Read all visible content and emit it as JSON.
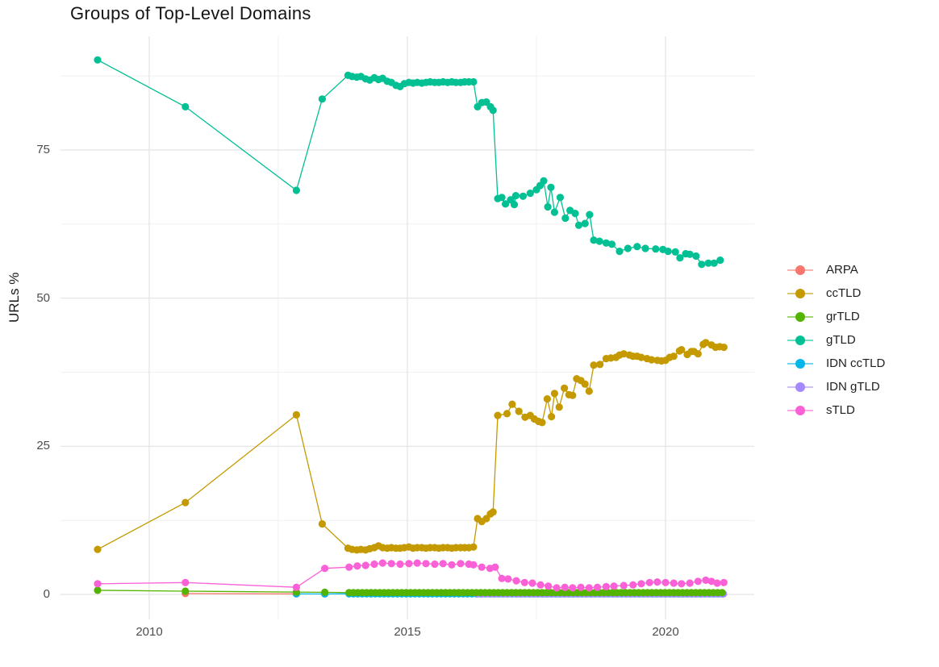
{
  "title": "Groups of Top-Level Domains",
  "y_axis_label": "URLs %",
  "legend": {
    "items": [
      {
        "label": "ARPA",
        "color": "#F8766D"
      },
      {
        "label": "ccTLD",
        "color": "#C49A00"
      },
      {
        "label": "grTLD",
        "color": "#53B400"
      },
      {
        "label": "gTLD",
        "color": "#00C094"
      },
      {
        "label": "IDN ccTLD",
        "color": "#00B6EB"
      },
      {
        "label": "IDN gTLD",
        "color": "#A58AFF"
      },
      {
        "label": "sTLD",
        "color": "#FB61D7"
      }
    ]
  },
  "chart_data": {
    "type": "line",
    "title": "Groups of Top-Level Domains",
    "xlabel": "",
    "ylabel": "URLs %",
    "xlim": [
      2008.3,
      2021.75
    ],
    "ylim": [
      -4.6,
      94.2
    ],
    "x_ticks": [
      2010,
      2015,
      2020
    ],
    "y_ticks": [
      0,
      25,
      50,
      75
    ],
    "x_minor": [
      2012.5,
      2017.5
    ],
    "y_minor": [
      12.5,
      37.5,
      62.5,
      87.5
    ],
    "grid": true,
    "legend_position": "right",
    "series": [
      {
        "name": "ARPA",
        "color": "#F8766D",
        "points": [
          [
            2010.7,
            0.15
          ],
          [
            2012.85,
            0.1
          ]
        ]
      },
      {
        "name": "ccTLD",
        "color": "#C49A00",
        "points": [
          [
            2009.0,
            7.6
          ],
          [
            2010.7,
            15.5
          ],
          [
            2012.85,
            30.3
          ],
          [
            2013.35,
            11.9
          ],
          [
            2013.85,
            7.8
          ],
          [
            2013.93,
            7.6
          ],
          [
            2014.02,
            7.5
          ],
          [
            2014.1,
            7.6
          ],
          [
            2014.19,
            7.5
          ],
          [
            2014.27,
            7.7
          ],
          [
            2014.36,
            7.9
          ],
          [
            2014.44,
            8.2
          ],
          [
            2014.52,
            7.9
          ],
          [
            2014.61,
            7.8
          ],
          [
            2014.69,
            7.9
          ],
          [
            2014.78,
            7.8
          ],
          [
            2014.86,
            7.8
          ],
          [
            2014.94,
            7.9
          ],
          [
            2015.03,
            8.0
          ],
          [
            2015.11,
            7.8
          ],
          [
            2015.19,
            7.9
          ],
          [
            2015.28,
            7.9
          ],
          [
            2015.36,
            7.8
          ],
          [
            2015.44,
            7.9
          ],
          [
            2015.53,
            7.9
          ],
          [
            2015.61,
            7.8
          ],
          [
            2015.69,
            7.9
          ],
          [
            2015.78,
            7.9
          ],
          [
            2015.86,
            7.8
          ],
          [
            2015.94,
            7.9
          ],
          [
            2016.03,
            7.9
          ],
          [
            2016.11,
            7.9
          ],
          [
            2016.19,
            7.9
          ],
          [
            2016.28,
            8.0
          ],
          [
            2016.36,
            12.8
          ],
          [
            2016.44,
            12.3
          ],
          [
            2016.53,
            12.8
          ],
          [
            2016.61,
            13.6
          ],
          [
            2016.66,
            13.9
          ],
          [
            2016.75,
            30.2
          ],
          [
            2016.93,
            30.5
          ],
          [
            2017.03,
            32.1
          ],
          [
            2017.16,
            30.9
          ],
          [
            2017.28,
            29.9
          ],
          [
            2017.38,
            30.2
          ],
          [
            2017.46,
            29.6
          ],
          [
            2017.54,
            29.2
          ],
          [
            2017.61,
            29.0
          ],
          [
            2017.71,
            33.0
          ],
          [
            2017.79,
            30.0
          ],
          [
            2017.85,
            33.9
          ],
          [
            2017.94,
            31.6
          ],
          [
            2018.04,
            34.8
          ],
          [
            2018.13,
            33.7
          ],
          [
            2018.2,
            33.6
          ],
          [
            2018.28,
            36.4
          ],
          [
            2018.36,
            36.1
          ],
          [
            2018.44,
            35.5
          ],
          [
            2018.52,
            34.3
          ],
          [
            2018.61,
            38.7
          ],
          [
            2018.73,
            38.8
          ],
          [
            2018.85,
            39.8
          ],
          [
            2018.94,
            39.9
          ],
          [
            2019.04,
            40.0
          ],
          [
            2019.11,
            40.4
          ],
          [
            2019.19,
            40.6
          ],
          [
            2019.3,
            40.4
          ],
          [
            2019.37,
            40.2
          ],
          [
            2019.45,
            40.2
          ],
          [
            2019.53,
            40.0
          ],
          [
            2019.64,
            39.8
          ],
          [
            2019.73,
            39.6
          ],
          [
            2019.84,
            39.5
          ],
          [
            2019.92,
            39.4
          ],
          [
            2020.0,
            39.5
          ],
          [
            2020.08,
            40.0
          ],
          [
            2020.16,
            40.2
          ],
          [
            2020.27,
            41.1
          ],
          [
            2020.31,
            41.3
          ],
          [
            2020.42,
            40.5
          ],
          [
            2020.5,
            41.0
          ],
          [
            2020.55,
            41.0
          ],
          [
            2020.63,
            40.6
          ],
          [
            2020.73,
            42.2
          ],
          [
            2020.78,
            42.5
          ],
          [
            2020.89,
            42.1
          ],
          [
            2020.97,
            41.7
          ],
          [
            2021.05,
            41.8
          ],
          [
            2021.13,
            41.7
          ]
        ]
      },
      {
        "name": "IDN ccTLD",
        "color": "#00B6EB",
        "points": [
          [
            2012.85,
            0.1
          ],
          [
            2013.4,
            0.08
          ],
          {
            "from": 2013.87,
            "to": 2021.13,
            "step": 0.085,
            "value": 0.1
          }
        ]
      },
      {
        "name": "IDN gTLD",
        "color": "#A58AFF",
        "points": [
          {
            "from": 2016.36,
            "to": 2021.13,
            "step": 0.085,
            "value": 0.08
          }
        ]
      },
      {
        "name": "grTLD",
        "color": "#53B400",
        "points": [
          [
            2009.0,
            0.7
          ],
          [
            2010.7,
            0.55
          ],
          [
            2012.85,
            0.4
          ],
          [
            2013.4,
            0.35
          ],
          {
            "from": 2013.87,
            "to": 2021.13,
            "step": 0.085,
            "value": 0.3
          }
        ]
      },
      {
        "name": "gTLD",
        "color": "#00C094",
        "points": [
          [
            2009.0,
            90.2
          ],
          [
            2010.7,
            82.3
          ],
          [
            2012.85,
            68.2
          ],
          [
            2013.35,
            83.6
          ],
          [
            2013.85,
            87.6
          ],
          [
            2013.93,
            87.4
          ],
          [
            2014.02,
            87.3
          ],
          [
            2014.1,
            87.4
          ],
          [
            2014.19,
            87.0
          ],
          [
            2014.27,
            86.8
          ],
          [
            2014.36,
            87.2
          ],
          [
            2014.44,
            86.9
          ],
          [
            2014.52,
            87.1
          ],
          [
            2014.61,
            86.6
          ],
          [
            2014.69,
            86.4
          ],
          [
            2014.78,
            85.9
          ],
          [
            2014.86,
            85.7
          ],
          [
            2014.94,
            86.2
          ],
          [
            2015.03,
            86.4
          ],
          [
            2015.11,
            86.3
          ],
          [
            2015.19,
            86.4
          ],
          [
            2015.28,
            86.3
          ],
          [
            2015.36,
            86.4
          ],
          [
            2015.44,
            86.5
          ],
          [
            2015.53,
            86.4
          ],
          [
            2015.61,
            86.4
          ],
          [
            2015.69,
            86.5
          ],
          [
            2015.78,
            86.4
          ],
          [
            2015.86,
            86.5
          ],
          [
            2015.94,
            86.4
          ],
          [
            2016.03,
            86.4
          ],
          [
            2016.11,
            86.5
          ],
          [
            2016.19,
            86.5
          ],
          [
            2016.28,
            86.5
          ],
          [
            2016.36,
            82.3
          ],
          [
            2016.44,
            83.0
          ],
          [
            2016.53,
            83.1
          ],
          [
            2016.61,
            82.3
          ],
          [
            2016.66,
            81.7
          ],
          [
            2016.75,
            66.8
          ],
          [
            2016.83,
            67.0
          ],
          [
            2016.9,
            65.9
          ],
          [
            2017.0,
            66.6
          ],
          [
            2017.07,
            65.8
          ],
          [
            2017.1,
            67.3
          ],
          [
            2017.24,
            67.2
          ],
          [
            2017.38,
            67.7
          ],
          [
            2017.5,
            68.3
          ],
          [
            2017.57,
            69.0
          ],
          [
            2017.64,
            69.8
          ],
          [
            2017.72,
            65.4
          ],
          [
            2017.78,
            68.7
          ],
          [
            2017.85,
            64.5
          ],
          [
            2017.96,
            67.0
          ],
          [
            2018.06,
            63.5
          ],
          [
            2018.15,
            64.8
          ],
          [
            2018.25,
            64.3
          ],
          [
            2018.32,
            62.3
          ],
          [
            2018.44,
            62.6
          ],
          [
            2018.53,
            64.1
          ],
          [
            2018.61,
            59.8
          ],
          [
            2018.72,
            59.6
          ],
          [
            2018.85,
            59.3
          ],
          [
            2018.96,
            59.1
          ],
          [
            2019.11,
            57.9
          ],
          [
            2019.27,
            58.4
          ],
          [
            2019.45,
            58.7
          ],
          [
            2019.61,
            58.4
          ],
          [
            2019.81,
            58.3
          ],
          [
            2019.95,
            58.2
          ],
          [
            2020.05,
            57.9
          ],
          [
            2020.19,
            57.8
          ],
          [
            2020.28,
            56.8
          ],
          [
            2020.39,
            57.5
          ],
          [
            2020.47,
            57.4
          ],
          [
            2020.59,
            57.1
          ],
          [
            2020.7,
            55.7
          ],
          [
            2020.83,
            55.9
          ],
          [
            2020.94,
            55.9
          ],
          [
            2021.06,
            56.4
          ]
        ]
      },
      {
        "name": "sTLD",
        "color": "#FB61D7",
        "points": [
          [
            2009.0,
            1.8
          ],
          [
            2010.7,
            2.0
          ],
          [
            2012.85,
            1.2
          ],
          [
            2013.4,
            4.4
          ],
          [
            2013.87,
            4.6
          ],
          [
            2014.03,
            4.8
          ],
          [
            2014.19,
            4.9
          ],
          [
            2014.36,
            5.1
          ],
          [
            2014.52,
            5.3
          ],
          [
            2014.69,
            5.2
          ],
          [
            2014.86,
            5.1
          ],
          [
            2015.03,
            5.2
          ],
          [
            2015.19,
            5.3
          ],
          [
            2015.36,
            5.2
          ],
          [
            2015.53,
            5.1
          ],
          [
            2015.69,
            5.2
          ],
          [
            2015.86,
            5.0
          ],
          [
            2016.03,
            5.2
          ],
          [
            2016.19,
            5.1
          ],
          [
            2016.28,
            5.0
          ],
          [
            2016.44,
            4.6
          ],
          [
            2016.6,
            4.4
          ],
          [
            2016.7,
            4.6
          ],
          [
            2016.83,
            2.7
          ],
          [
            2016.95,
            2.6
          ],
          [
            2017.11,
            2.3
          ],
          [
            2017.27,
            2.0
          ],
          [
            2017.42,
            1.9
          ],
          [
            2017.58,
            1.6
          ],
          [
            2017.73,
            1.4
          ],
          [
            2017.89,
            1.1
          ],
          [
            2018.05,
            1.2
          ],
          [
            2018.2,
            1.1
          ],
          [
            2018.36,
            1.2
          ],
          [
            2018.52,
            1.1
          ],
          [
            2018.68,
            1.2
          ],
          [
            2018.85,
            1.3
          ],
          [
            2019.0,
            1.4
          ],
          [
            2019.19,
            1.5
          ],
          [
            2019.37,
            1.6
          ],
          [
            2019.53,
            1.8
          ],
          [
            2019.69,
            2.0
          ],
          [
            2019.84,
            2.1
          ],
          [
            2020.0,
            2.0
          ],
          [
            2020.16,
            1.9
          ],
          [
            2020.31,
            1.8
          ],
          [
            2020.47,
            1.9
          ],
          [
            2020.63,
            2.2
          ],
          [
            2020.78,
            2.4
          ],
          [
            2020.89,
            2.2
          ],
          [
            2021.0,
            1.9
          ],
          [
            2021.13,
            2.0
          ]
        ]
      }
    ]
  }
}
